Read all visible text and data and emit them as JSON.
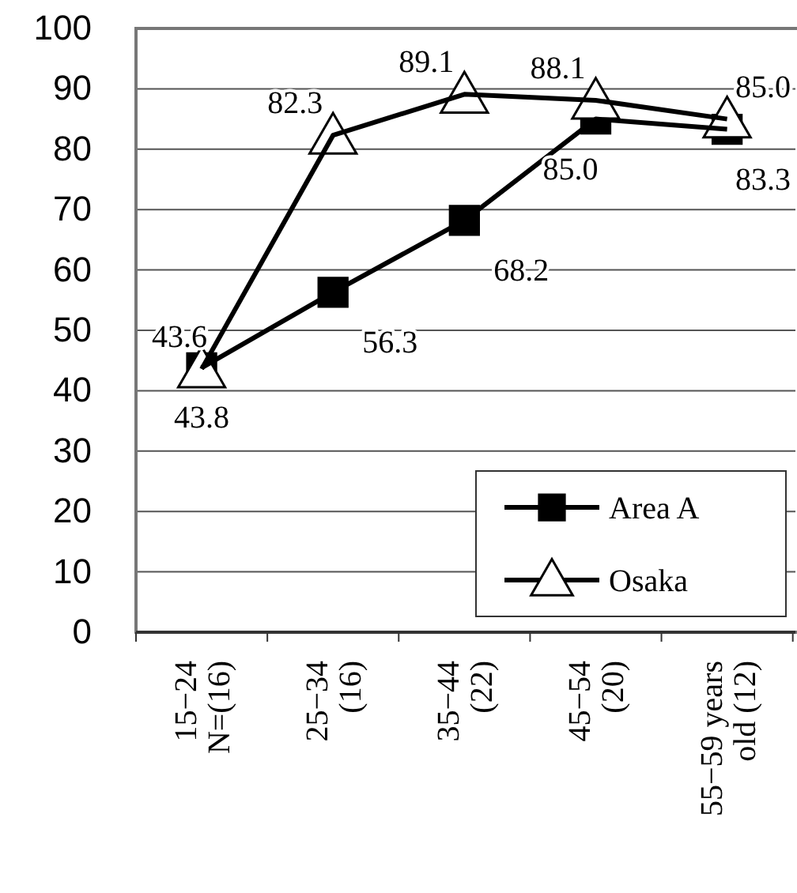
{
  "chart_data": {
    "type": "line",
    "categories": [
      "15−24\nN=(16)",
      "25−34\n(16)",
      "35−44\n(22)",
      "45−54\n(20)",
      "55−59 years\nold (12)"
    ],
    "series": [
      {
        "name": "Area A",
        "color": "#000000",
        "marker": "square",
        "values": [
          43.8,
          56.3,
          68.2,
          85.0,
          83.3
        ],
        "value_labels": [
          "43.8",
          "56.3",
          "68.2",
          "85.0",
          "83.3"
        ]
      },
      {
        "name": "Osaka",
        "color": "#000000",
        "marker": "triangle",
        "values": [
          43.6,
          82.3,
          89.1,
          88.1,
          85.0
        ],
        "value_labels": [
          "43.6",
          "82.3",
          "89.1",
          "88.1",
          "85.0"
        ]
      }
    ],
    "ylim": [
      0,
      100
    ],
    "yticks": [
      0,
      10,
      20,
      30,
      40,
      50,
      60,
      70,
      80,
      90,
      100
    ],
    "grid": "y",
    "legend": "bottom right",
    "line_style": "solid"
  }
}
